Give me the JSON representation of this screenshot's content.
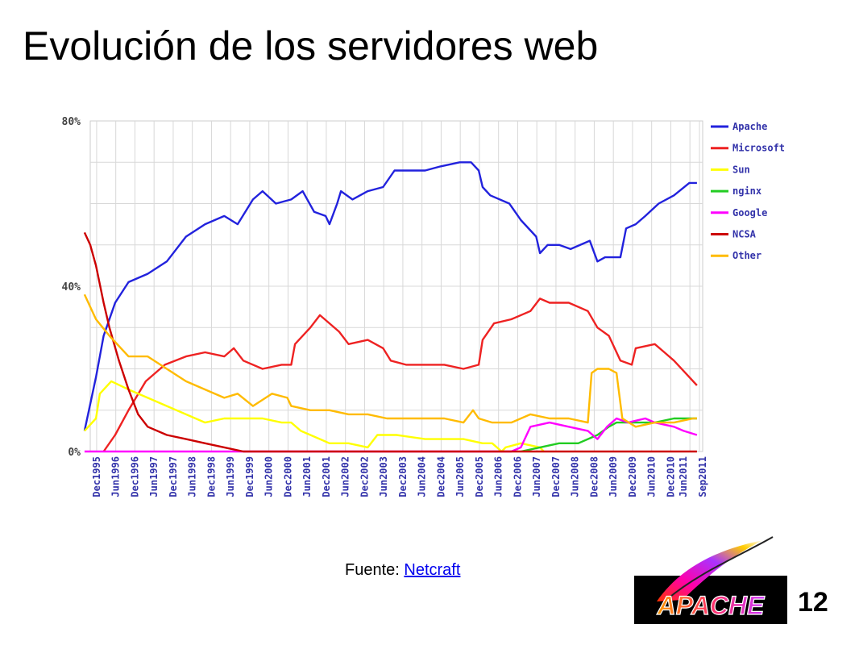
{
  "slide": {
    "title": "Evolución de los servidores web",
    "source_label": "Fuente:",
    "source_link": "Netcraft",
    "page_number": "12"
  },
  "logo": {
    "text": "APACHE"
  },
  "chart_data": {
    "type": "line",
    "title": "",
    "xlabel": "",
    "ylabel": "",
    "ylim": [
      0,
      80
    ],
    "y_ticks": [
      "0%",
      "40%",
      "80%"
    ],
    "grid": true,
    "legend_position": "right",
    "x_range": [
      1995.75,
      2011.75
    ],
    "x_tick_labels": [
      "Dec1995",
      "Jun1996",
      "Dec1996",
      "Jun1997",
      "Dec1997",
      "Jun1998",
      "Dec1998",
      "Jun1999",
      "Dec1999",
      "Jun2000",
      "Dec2000",
      "Jun2001",
      "Dec2001",
      "Jun2002",
      "Dec2002",
      "Jun2003",
      "Dec2003",
      "Jun2004",
      "Dec2004",
      "Jun2005",
      "Dec2005",
      "Jun2006",
      "Dec2006",
      "Jun2007",
      "Dec2007",
      "Jun2008",
      "Dec2008",
      "Jun2009",
      "Dec2009",
      "Jun2010",
      "Dec2010",
      "Jun2011",
      "Sep2011"
    ],
    "series": [
      {
        "name": "Apache",
        "color": "#2222dd",
        "points": [
          [
            1995.6,
            5
          ],
          [
            1995.9,
            18
          ],
          [
            1996.1,
            28
          ],
          [
            1996.4,
            36
          ],
          [
            1996.75,
            41
          ],
          [
            1997.25,
            43
          ],
          [
            1997.75,
            46
          ],
          [
            1998.25,
            52
          ],
          [
            1998.75,
            55
          ],
          [
            1999.25,
            57
          ],
          [
            1999.6,
            55
          ],
          [
            2000.0,
            61
          ],
          [
            2000.25,
            63
          ],
          [
            2000.6,
            60
          ],
          [
            2001.0,
            61
          ],
          [
            2001.3,
            63
          ],
          [
            2001.6,
            58
          ],
          [
            2001.9,
            57
          ],
          [
            2002.0,
            55
          ],
          [
            2002.2,
            60
          ],
          [
            2002.3,
            63
          ],
          [
            2002.6,
            61
          ],
          [
            2003.0,
            63
          ],
          [
            2003.4,
            64
          ],
          [
            2003.7,
            68
          ],
          [
            2004.5,
            68
          ],
          [
            2004.9,
            69
          ],
          [
            2005.4,
            70
          ],
          [
            2005.7,
            70
          ],
          [
            2005.9,
            68
          ],
          [
            2006.0,
            64
          ],
          [
            2006.2,
            62
          ],
          [
            2006.7,
            60
          ],
          [
            2007.0,
            56
          ],
          [
            2007.4,
            52
          ],
          [
            2007.5,
            48
          ],
          [
            2007.7,
            50
          ],
          [
            2008.0,
            50
          ],
          [
            2008.3,
            49
          ],
          [
            2008.8,
            51
          ],
          [
            2009.0,
            46
          ],
          [
            2009.2,
            47
          ],
          [
            2009.6,
            47
          ],
          [
            2009.75,
            54
          ],
          [
            2010.0,
            55
          ],
          [
            2010.25,
            57
          ],
          [
            2010.6,
            60
          ],
          [
            2011.0,
            62
          ],
          [
            2011.4,
            65
          ],
          [
            2011.6,
            65
          ]
        ]
      },
      {
        "name": "Microsoft",
        "color": "#ee2222",
        "points": [
          [
            1996.1,
            0
          ],
          [
            1996.4,
            4
          ],
          [
            1996.75,
            10
          ],
          [
            1997.2,
            17
          ],
          [
            1997.7,
            21
          ],
          [
            1998.25,
            23
          ],
          [
            1998.75,
            24
          ],
          [
            1999.25,
            23
          ],
          [
            1999.5,
            25
          ],
          [
            1999.75,
            22
          ],
          [
            2000.25,
            20
          ],
          [
            2000.75,
            21
          ],
          [
            2001.0,
            21
          ],
          [
            2001.1,
            26
          ],
          [
            2001.5,
            30
          ],
          [
            2001.75,
            33
          ],
          [
            2002.0,
            31
          ],
          [
            2002.25,
            29
          ],
          [
            2002.5,
            26
          ],
          [
            2003.0,
            27
          ],
          [
            2003.4,
            25
          ],
          [
            2003.6,
            22
          ],
          [
            2004.0,
            21
          ],
          [
            2004.5,
            21
          ],
          [
            2005.0,
            21
          ],
          [
            2005.5,
            20
          ],
          [
            2005.9,
            21
          ],
          [
            2006.0,
            27
          ],
          [
            2006.3,
            31
          ],
          [
            2006.75,
            32
          ],
          [
            2007.25,
            34
          ],
          [
            2007.5,
            37
          ],
          [
            2007.75,
            36
          ],
          [
            2008.25,
            36
          ],
          [
            2008.75,
            34
          ],
          [
            2009.0,
            30
          ],
          [
            2009.3,
            28
          ],
          [
            2009.6,
            22
          ],
          [
            2009.9,
            21
          ],
          [
            2010.0,
            25
          ],
          [
            2010.5,
            26
          ],
          [
            2010.75,
            24
          ],
          [
            2011.0,
            22
          ],
          [
            2011.3,
            19
          ],
          [
            2011.6,
            16
          ]
        ]
      },
      {
        "name": "Sun",
        "color": "#ffff00",
        "points": [
          [
            1995.6,
            5
          ],
          [
            1995.9,
            8
          ],
          [
            1996.0,
            14
          ],
          [
            1996.3,
            17
          ],
          [
            1996.75,
            15
          ],
          [
            1997.25,
            13
          ],
          [
            1997.75,
            11
          ],
          [
            1998.25,
            9
          ],
          [
            1998.75,
            7
          ],
          [
            1999.25,
            8
          ],
          [
            1999.75,
            8
          ],
          [
            2000.25,
            8
          ],
          [
            2000.75,
            7
          ],
          [
            2001.0,
            7
          ],
          [
            2001.25,
            5
          ],
          [
            2001.75,
            3
          ],
          [
            2002.0,
            2
          ],
          [
            2002.5,
            2
          ],
          [
            2003.0,
            1
          ],
          [
            2003.25,
            4
          ],
          [
            2003.75,
            4
          ],
          [
            2004.5,
            3
          ],
          [
            2005.0,
            3
          ],
          [
            2005.5,
            3
          ],
          [
            2006.0,
            2
          ],
          [
            2006.25,
            2
          ],
          [
            2006.5,
            0
          ],
          [
            2006.6,
            1
          ],
          [
            2007.0,
            2
          ],
          [
            2007.5,
            1
          ],
          [
            2007.6,
            0
          ]
        ]
      },
      {
        "name": "nginx",
        "color": "#22cc22",
        "points": [
          [
            2007.0,
            0
          ],
          [
            2007.5,
            1
          ],
          [
            2008.0,
            2
          ],
          [
            2008.5,
            2
          ],
          [
            2009.0,
            4
          ],
          [
            2009.3,
            6
          ],
          [
            2009.5,
            7
          ],
          [
            2010.0,
            7
          ],
          [
            2010.5,
            7
          ],
          [
            2011.0,
            8
          ],
          [
            2011.5,
            8
          ],
          [
            2011.6,
            8
          ]
        ]
      },
      {
        "name": "Google",
        "color": "#ff00ff",
        "points": [
          [
            1995.6,
            0
          ],
          [
            2006.75,
            0
          ],
          [
            2007.0,
            1
          ],
          [
            2007.25,
            6
          ],
          [
            2007.75,
            7
          ],
          [
            2008.25,
            6
          ],
          [
            2008.75,
            5
          ],
          [
            2009.0,
            3
          ],
          [
            2009.25,
            6
          ],
          [
            2009.5,
            8
          ],
          [
            2009.8,
            7
          ],
          [
            2010.25,
            8
          ],
          [
            2010.5,
            7
          ],
          [
            2011.0,
            6
          ],
          [
            2011.25,
            5
          ],
          [
            2011.6,
            4
          ]
        ]
      },
      {
        "name": "NCSA",
        "color": "#cc0000",
        "points": [
          [
            1995.6,
            53
          ],
          [
            1995.75,
            50
          ],
          [
            1995.9,
            45
          ],
          [
            1996.1,
            36
          ],
          [
            1996.25,
            30
          ],
          [
            1996.5,
            22
          ],
          [
            1996.75,
            15
          ],
          [
            1997.0,
            9
          ],
          [
            1997.25,
            6
          ],
          [
            1997.75,
            4
          ],
          [
            1998.25,
            3
          ],
          [
            1998.75,
            2
          ],
          [
            1999.25,
            1
          ],
          [
            1999.75,
            0
          ],
          [
            2011.6,
            0
          ]
        ]
      },
      {
        "name": "Other",
        "color": "#ffbb00",
        "points": [
          [
            1995.6,
            38
          ],
          [
            1995.9,
            32
          ],
          [
            1996.25,
            28
          ],
          [
            1996.75,
            23
          ],
          [
            1997.25,
            23
          ],
          [
            1997.75,
            20
          ],
          [
            1998.25,
            17
          ],
          [
            1998.75,
            15
          ],
          [
            1999.25,
            13
          ],
          [
            1999.6,
            14
          ],
          [
            2000.0,
            11
          ],
          [
            2000.5,
            14
          ],
          [
            2000.9,
            13
          ],
          [
            2001.0,
            11
          ],
          [
            2001.5,
            10
          ],
          [
            2002.0,
            10
          ],
          [
            2002.5,
            9
          ],
          [
            2003.0,
            9
          ],
          [
            2003.5,
            8
          ],
          [
            2004.0,
            8
          ],
          [
            2004.5,
            8
          ],
          [
            2005.0,
            8
          ],
          [
            2005.5,
            7
          ],
          [
            2005.75,
            10
          ],
          [
            2005.9,
            8
          ],
          [
            2006.25,
            7
          ],
          [
            2006.75,
            7
          ],
          [
            2007.25,
            9
          ],
          [
            2007.75,
            8
          ],
          [
            2008.25,
            8
          ],
          [
            2008.75,
            7
          ],
          [
            2008.85,
            19
          ],
          [
            2009.0,
            20
          ],
          [
            2009.3,
            20
          ],
          [
            2009.5,
            19
          ],
          [
            2009.65,
            8
          ],
          [
            2010.0,
            6
          ],
          [
            2010.5,
            7
          ],
          [
            2011.0,
            7
          ],
          [
            2011.5,
            8
          ],
          [
            2011.6,
            8
          ]
        ]
      }
    ]
  }
}
